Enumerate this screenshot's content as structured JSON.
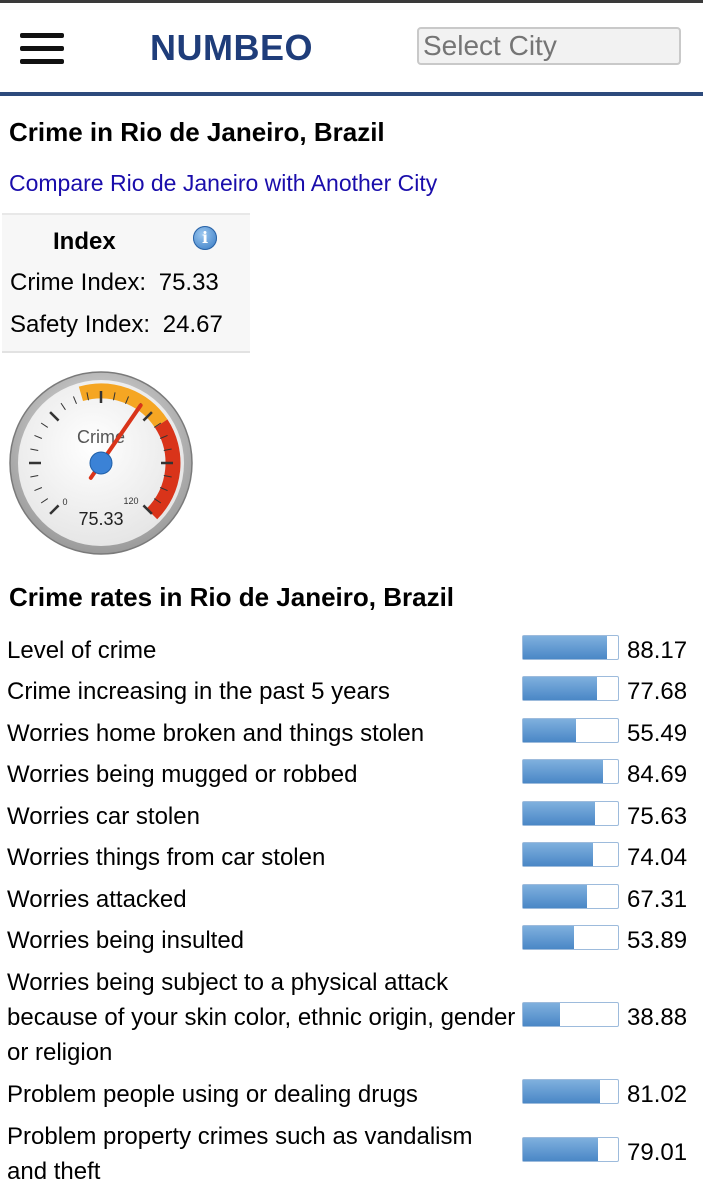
{
  "header": {
    "logo": "NUMBEO",
    "city_select_placeholder": "Select City",
    "menu_icon": "hamburger-menu-icon"
  },
  "page_title": "Crime in Rio de Janeiro, Brazil",
  "compare_link": "Compare Rio de Janeiro with Another City",
  "index_box": {
    "title": "Index",
    "info_icon": "info-icon",
    "crime_index_label": "Crime Index:",
    "crime_index_value": "75.33",
    "safety_index_label": "Safety Index:",
    "safety_index_value": "24.67"
  },
  "gauge": {
    "label": "Crime",
    "min_label": "0",
    "max_label": "120",
    "value_text": "75.33",
    "value": 75.33,
    "max": 120,
    "colors": {
      "low": "#f5a623",
      "high": "#d9341a",
      "needle": "#d9341a",
      "hub": "#3b82d6"
    }
  },
  "crime_rates": {
    "title": "Crime rates in Rio de Janeiro, Brazil",
    "bar_color": "#4a87c6",
    "rows": [
      {
        "label": "Level of crime",
        "value_text": "88.17",
        "value": 88.17
      },
      {
        "label": "Crime increasing in the past 5 years",
        "value_text": "77.68",
        "value": 77.68
      },
      {
        "label": "Worries home broken and things stolen",
        "value_text": "55.49",
        "value": 55.49
      },
      {
        "label": "Worries being mugged or robbed",
        "value_text": "84.69",
        "value": 84.69
      },
      {
        "label": "Worries car stolen",
        "value_text": "75.63",
        "value": 75.63
      },
      {
        "label": "Worries things from car stolen",
        "value_text": "74.04",
        "value": 74.04
      },
      {
        "label": "Worries attacked",
        "value_text": "67.31",
        "value": 67.31
      },
      {
        "label": "Worries being insulted",
        "value_text": "53.89",
        "value": 53.89
      },
      {
        "label": "Worries being subject to a physical attack because of your skin color, ethnic origin, gender or religion",
        "value_text": "38.88",
        "value": 38.88
      },
      {
        "label": "Problem people using or dealing drugs",
        "value_text": "81.02",
        "value": 81.02
      },
      {
        "label": "Problem property crimes such as vandalism and theft",
        "value_text": "79.01",
        "value": 79.01
      }
    ]
  }
}
